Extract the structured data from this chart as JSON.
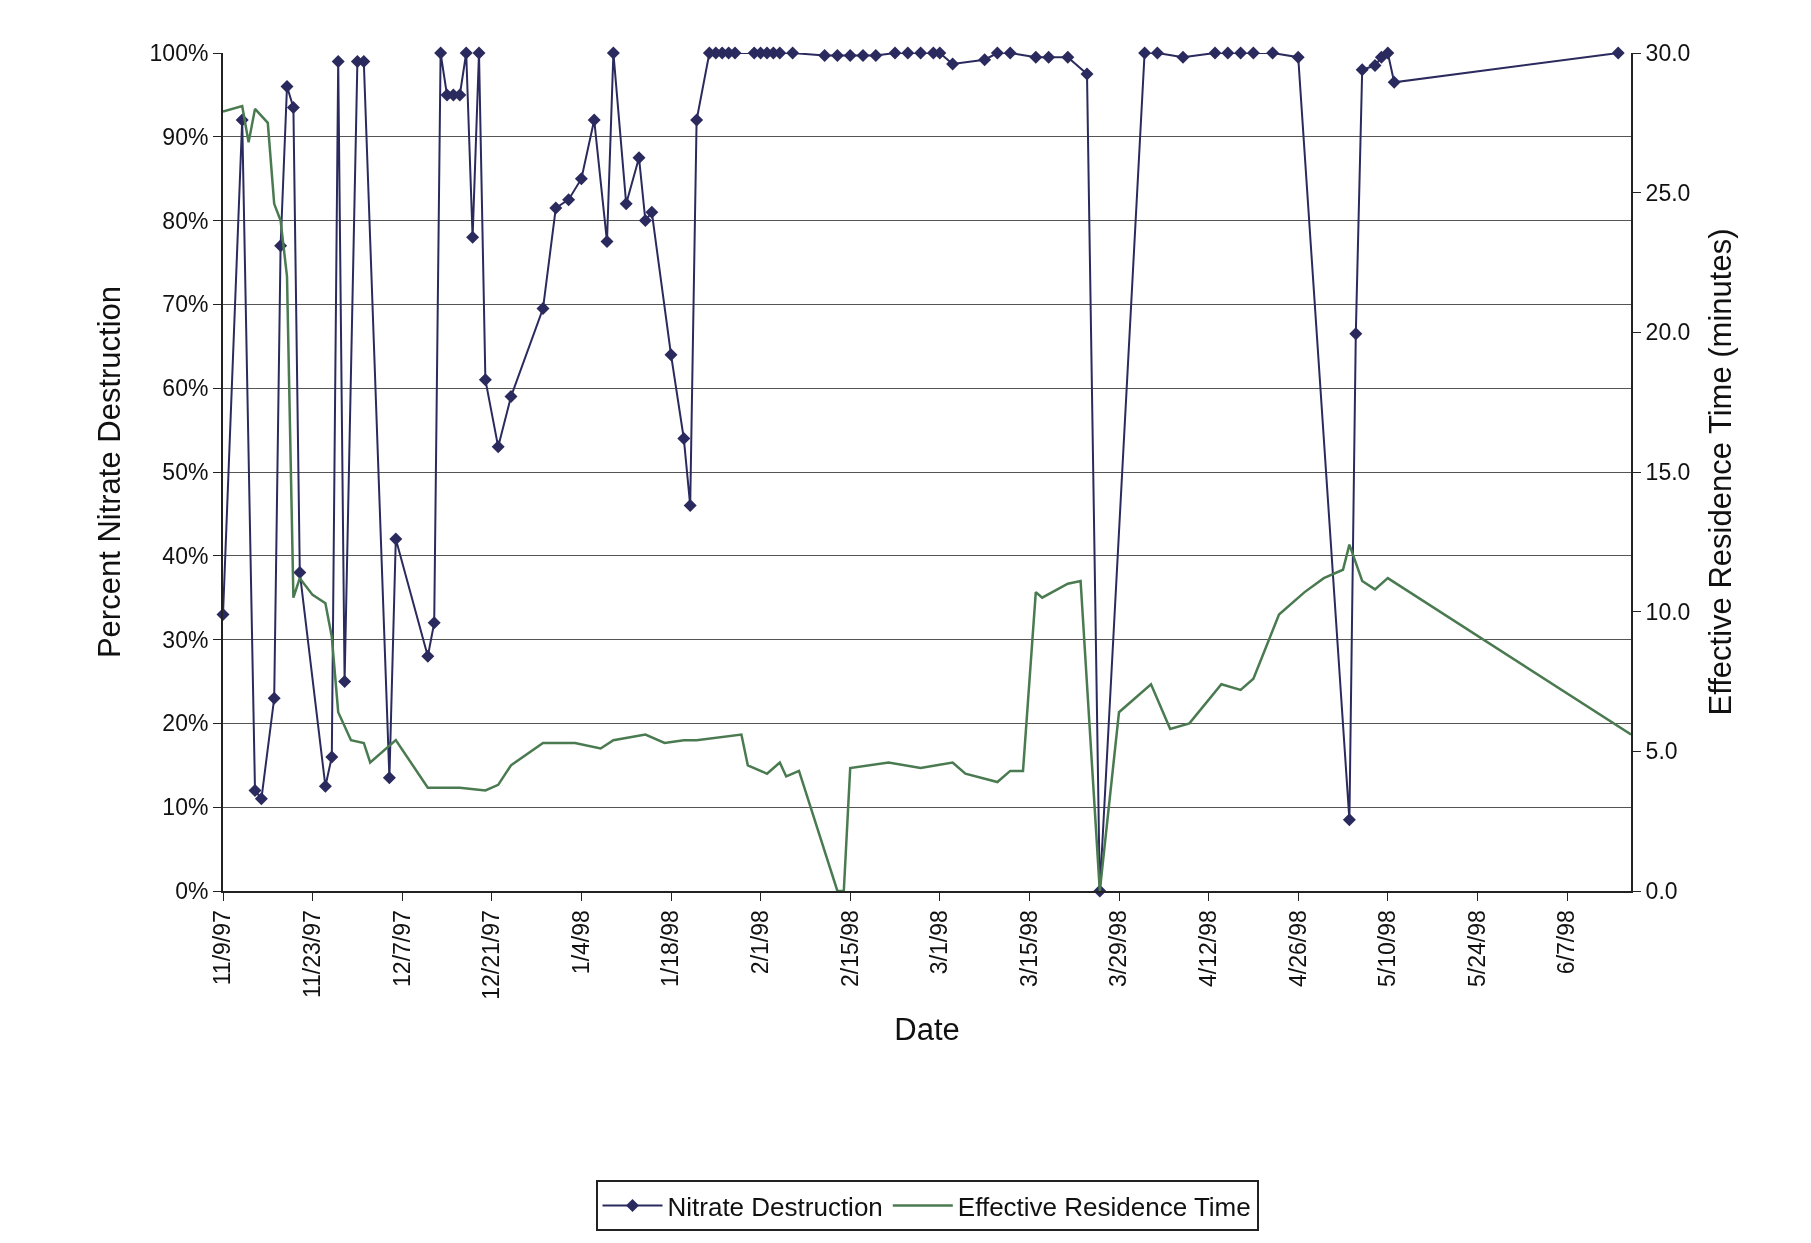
{
  "chart_data": {
    "type": "line",
    "xlabel": "Date",
    "ylabel": "Percent Nitrate Destruction",
    "y2label": "Effective Residence Time (minutes)",
    "xlim": [
      "1997-11-09",
      "1998-06-17"
    ],
    "xticks": [
      {
        "value": "1997-11-09",
        "label": "11/9/97"
      },
      {
        "value": "1997-11-23",
        "label": "11/23/97"
      },
      {
        "value": "1997-12-07",
        "label": "12/7/97"
      },
      {
        "value": "1997-12-21",
        "label": "12/21/97"
      },
      {
        "value": "1998-01-04",
        "label": "1/4/98"
      },
      {
        "value": "1998-01-18",
        "label": "1/18/98"
      },
      {
        "value": "1998-02-01",
        "label": "2/1/98"
      },
      {
        "value": "1998-02-15",
        "label": "2/15/98"
      },
      {
        "value": "1998-03-01",
        "label": "3/1/98"
      },
      {
        "value": "1998-03-15",
        "label": "3/15/98"
      },
      {
        "value": "1998-03-29",
        "label": "3/29/98"
      },
      {
        "value": "1998-04-12",
        "label": "4/12/98"
      },
      {
        "value": "1998-04-26",
        "label": "4/26/98"
      },
      {
        "value": "1998-05-10",
        "label": "5/10/98"
      },
      {
        "value": "1998-05-24",
        "label": "5/24/98"
      },
      {
        "value": "1998-06-07",
        "label": "6/7/98"
      }
    ],
    "ylim": [
      0,
      100
    ],
    "yticks": [
      {
        "value": 0,
        "label": "0%"
      },
      {
        "value": 10,
        "label": "10%"
      },
      {
        "value": 20,
        "label": "20%"
      },
      {
        "value": 30,
        "label": "30%"
      },
      {
        "value": 40,
        "label": "40%"
      },
      {
        "value": 50,
        "label": "50%"
      },
      {
        "value": 60,
        "label": "60%"
      },
      {
        "value": 70,
        "label": "70%"
      },
      {
        "value": 80,
        "label": "80%"
      },
      {
        "value": 90,
        "label": "90%"
      },
      {
        "value": 100,
        "label": "100%"
      }
    ],
    "y2lim": [
      0,
      30
    ],
    "y2ticks": [
      {
        "value": 0,
        "label": "0.0"
      },
      {
        "value": 5,
        "label": "5.0"
      },
      {
        "value": 10,
        "label": "10.0"
      },
      {
        "value": 15,
        "label": "15.0"
      },
      {
        "value": 20,
        "label": "20.0"
      },
      {
        "value": 25,
        "label": "25.0"
      },
      {
        "value": 30,
        "label": "30.0"
      }
    ],
    "grid": "y",
    "legend": "bottom",
    "series": [
      {
        "name": "Nitrate Destruction",
        "color": "#2b2a5e",
        "marker": "diamond",
        "line_style": "solid",
        "x": [
          "1997-11-09",
          "1997-11-12",
          "1997-11-14",
          "1997-11-15",
          "1997-11-17",
          "1997-11-18",
          "1997-11-19",
          "1997-11-20",
          "1997-11-21",
          "1997-11-25",
          "1997-11-26",
          "1997-11-27",
          "1997-11-28",
          "1997-11-30",
          "1997-12-01",
          "1997-12-05",
          "1997-12-06",
          "1997-12-11",
          "1997-12-12",
          "1997-12-13",
          "1997-12-14",
          "1997-12-15",
          "1997-12-16",
          "1997-12-17",
          "1997-12-18",
          "1997-12-19",
          "1997-12-20",
          "1997-12-22",
          "1997-12-24",
          "1997-12-29",
          "1997-12-31",
          "1998-01-02",
          "1998-01-04",
          "1998-01-06",
          "1998-01-08",
          "1998-01-09",
          "1998-01-11",
          "1998-01-13",
          "1998-01-14",
          "1998-01-15",
          "1998-01-18",
          "1998-01-20",
          "1998-01-21",
          "1998-01-22",
          "1998-01-24",
          "1998-01-25",
          "1998-01-26",
          "1998-01-27",
          "1998-01-28",
          "1998-01-31",
          "1998-02-01",
          "1998-02-02",
          "1998-02-03",
          "1998-02-04",
          "1998-02-06",
          "1998-02-11",
          "1998-02-13",
          "1998-02-15",
          "1998-02-17",
          "1998-02-19",
          "1998-02-22",
          "1998-02-24",
          "1998-02-26",
          "1998-02-28",
          "1998-03-01",
          "1998-03-03",
          "1998-03-08",
          "1998-03-10",
          "1998-03-12",
          "1998-03-16",
          "1998-03-18",
          "1998-03-21",
          "1998-03-24",
          "1998-03-26",
          "1998-04-02",
          "1998-04-04",
          "1998-04-08",
          "1998-04-13",
          "1998-04-15",
          "1998-04-17",
          "1998-04-19",
          "1998-04-22",
          "1998-04-26",
          "1998-05-04",
          "1998-05-05",
          "1998-05-06",
          "1998-05-08",
          "1998-05-09",
          "1998-05-10",
          "1998-05-11",
          "1998-06-15"
        ],
        "values": [
          33,
          92,
          12,
          11,
          23,
          77,
          96,
          93.5,
          38,
          12.5,
          16,
          99,
          25,
          99,
          99,
          13.5,
          42,
          28,
          32,
          100,
          95,
          95,
          95,
          100,
          78,
          100,
          61,
          53,
          59,
          69.5,
          81.5,
          82.5,
          85,
          92,
          77.5,
          100,
          82,
          87.5,
          80,
          81,
          64,
          54,
          46,
          92,
          100,
          100,
          100,
          100,
          100,
          100,
          100,
          100,
          100,
          100,
          100,
          99.7,
          99.7,
          99.7,
          99.7,
          99.7,
          100,
          100,
          100,
          100,
          100,
          98.7,
          99.2,
          100,
          100,
          99.5,
          99.5,
          99.5,
          97.5,
          0,
          100,
          100,
          99.5,
          100,
          100,
          100,
          100,
          100,
          99.5,
          8.5,
          66.5,
          98,
          98.5,
          99.5,
          100,
          96.5,
          100
        ]
      },
      {
        "name": "Effective Residence Time",
        "color": "#4a7a50",
        "marker": "none",
        "line_style": "solid",
        "axis": "y2",
        "x": [
          "1997-11-09",
          "1997-11-12",
          "1997-11-13",
          "1997-11-14",
          "1997-11-16",
          "1997-11-17",
          "1997-11-18",
          "1997-11-19",
          "1997-11-20",
          "1997-11-21",
          "1997-11-23",
          "1997-11-25",
          "1997-11-26",
          "1997-11-27",
          "1997-11-29",
          "1997-12-01",
          "1997-12-02",
          "1997-12-06",
          "1997-12-11",
          "1997-12-16",
          "1997-12-20",
          "1997-12-22",
          "1997-12-24",
          "1997-12-29",
          "1998-01-03",
          "1998-01-07",
          "1998-01-09",
          "1998-01-14",
          "1998-01-17",
          "1998-01-20",
          "1998-01-22",
          "1998-01-29",
          "1998-01-30",
          "1998-02-02",
          "1998-02-04",
          "1998-02-05",
          "1998-02-07",
          "1998-02-13",
          "1998-02-14",
          "1998-02-15",
          "1998-02-21",
          "1998-02-26",
          "1998-03-03",
          "1998-03-05",
          "1998-03-10",
          "1998-03-12",
          "1998-03-14",
          "1998-03-16",
          "1998-03-17",
          "1998-03-21",
          "1998-03-23",
          "1998-03-26",
          "1998-03-29",
          "1998-04-03",
          "1998-04-06",
          "1998-04-09",
          "1998-04-14",
          "1998-04-17",
          "1998-04-19",
          "1998-04-23",
          "1998-04-27",
          "1998-04-30",
          "1998-05-03",
          "1998-05-04",
          "1998-05-06",
          "1998-05-08",
          "1998-05-10",
          "1998-06-17"
        ],
        "values": [
          27.9,
          28.1,
          26.8,
          28,
          27.5,
          24.6,
          24,
          22,
          10.5,
          11.2,
          10.6,
          10.3,
          9.1,
          6.4,
          5.4,
          5.3,
          4.6,
          5.4,
          3.7,
          3.7,
          3.6,
          3.8,
          4.5,
          5.3,
          5.3,
          5.1,
          5.4,
          5.6,
          5.3,
          5.4,
          5.4,
          5.6,
          4.5,
          4.2,
          4.6,
          4.1,
          4.3,
          0,
          0,
          4.4,
          4.6,
          4.4,
          4.6,
          4.2,
          3.9,
          4.3,
          4.3,
          10.7,
          10.5,
          11,
          11.1,
          0,
          6.4,
          7.4,
          5.8,
          6,
          7.4,
          7.2,
          7.6,
          9.9,
          10.7,
          11.2,
          11.5,
          12.4,
          11.1,
          10.8,
          11.2,
          5.6
        ]
      }
    ]
  }
}
